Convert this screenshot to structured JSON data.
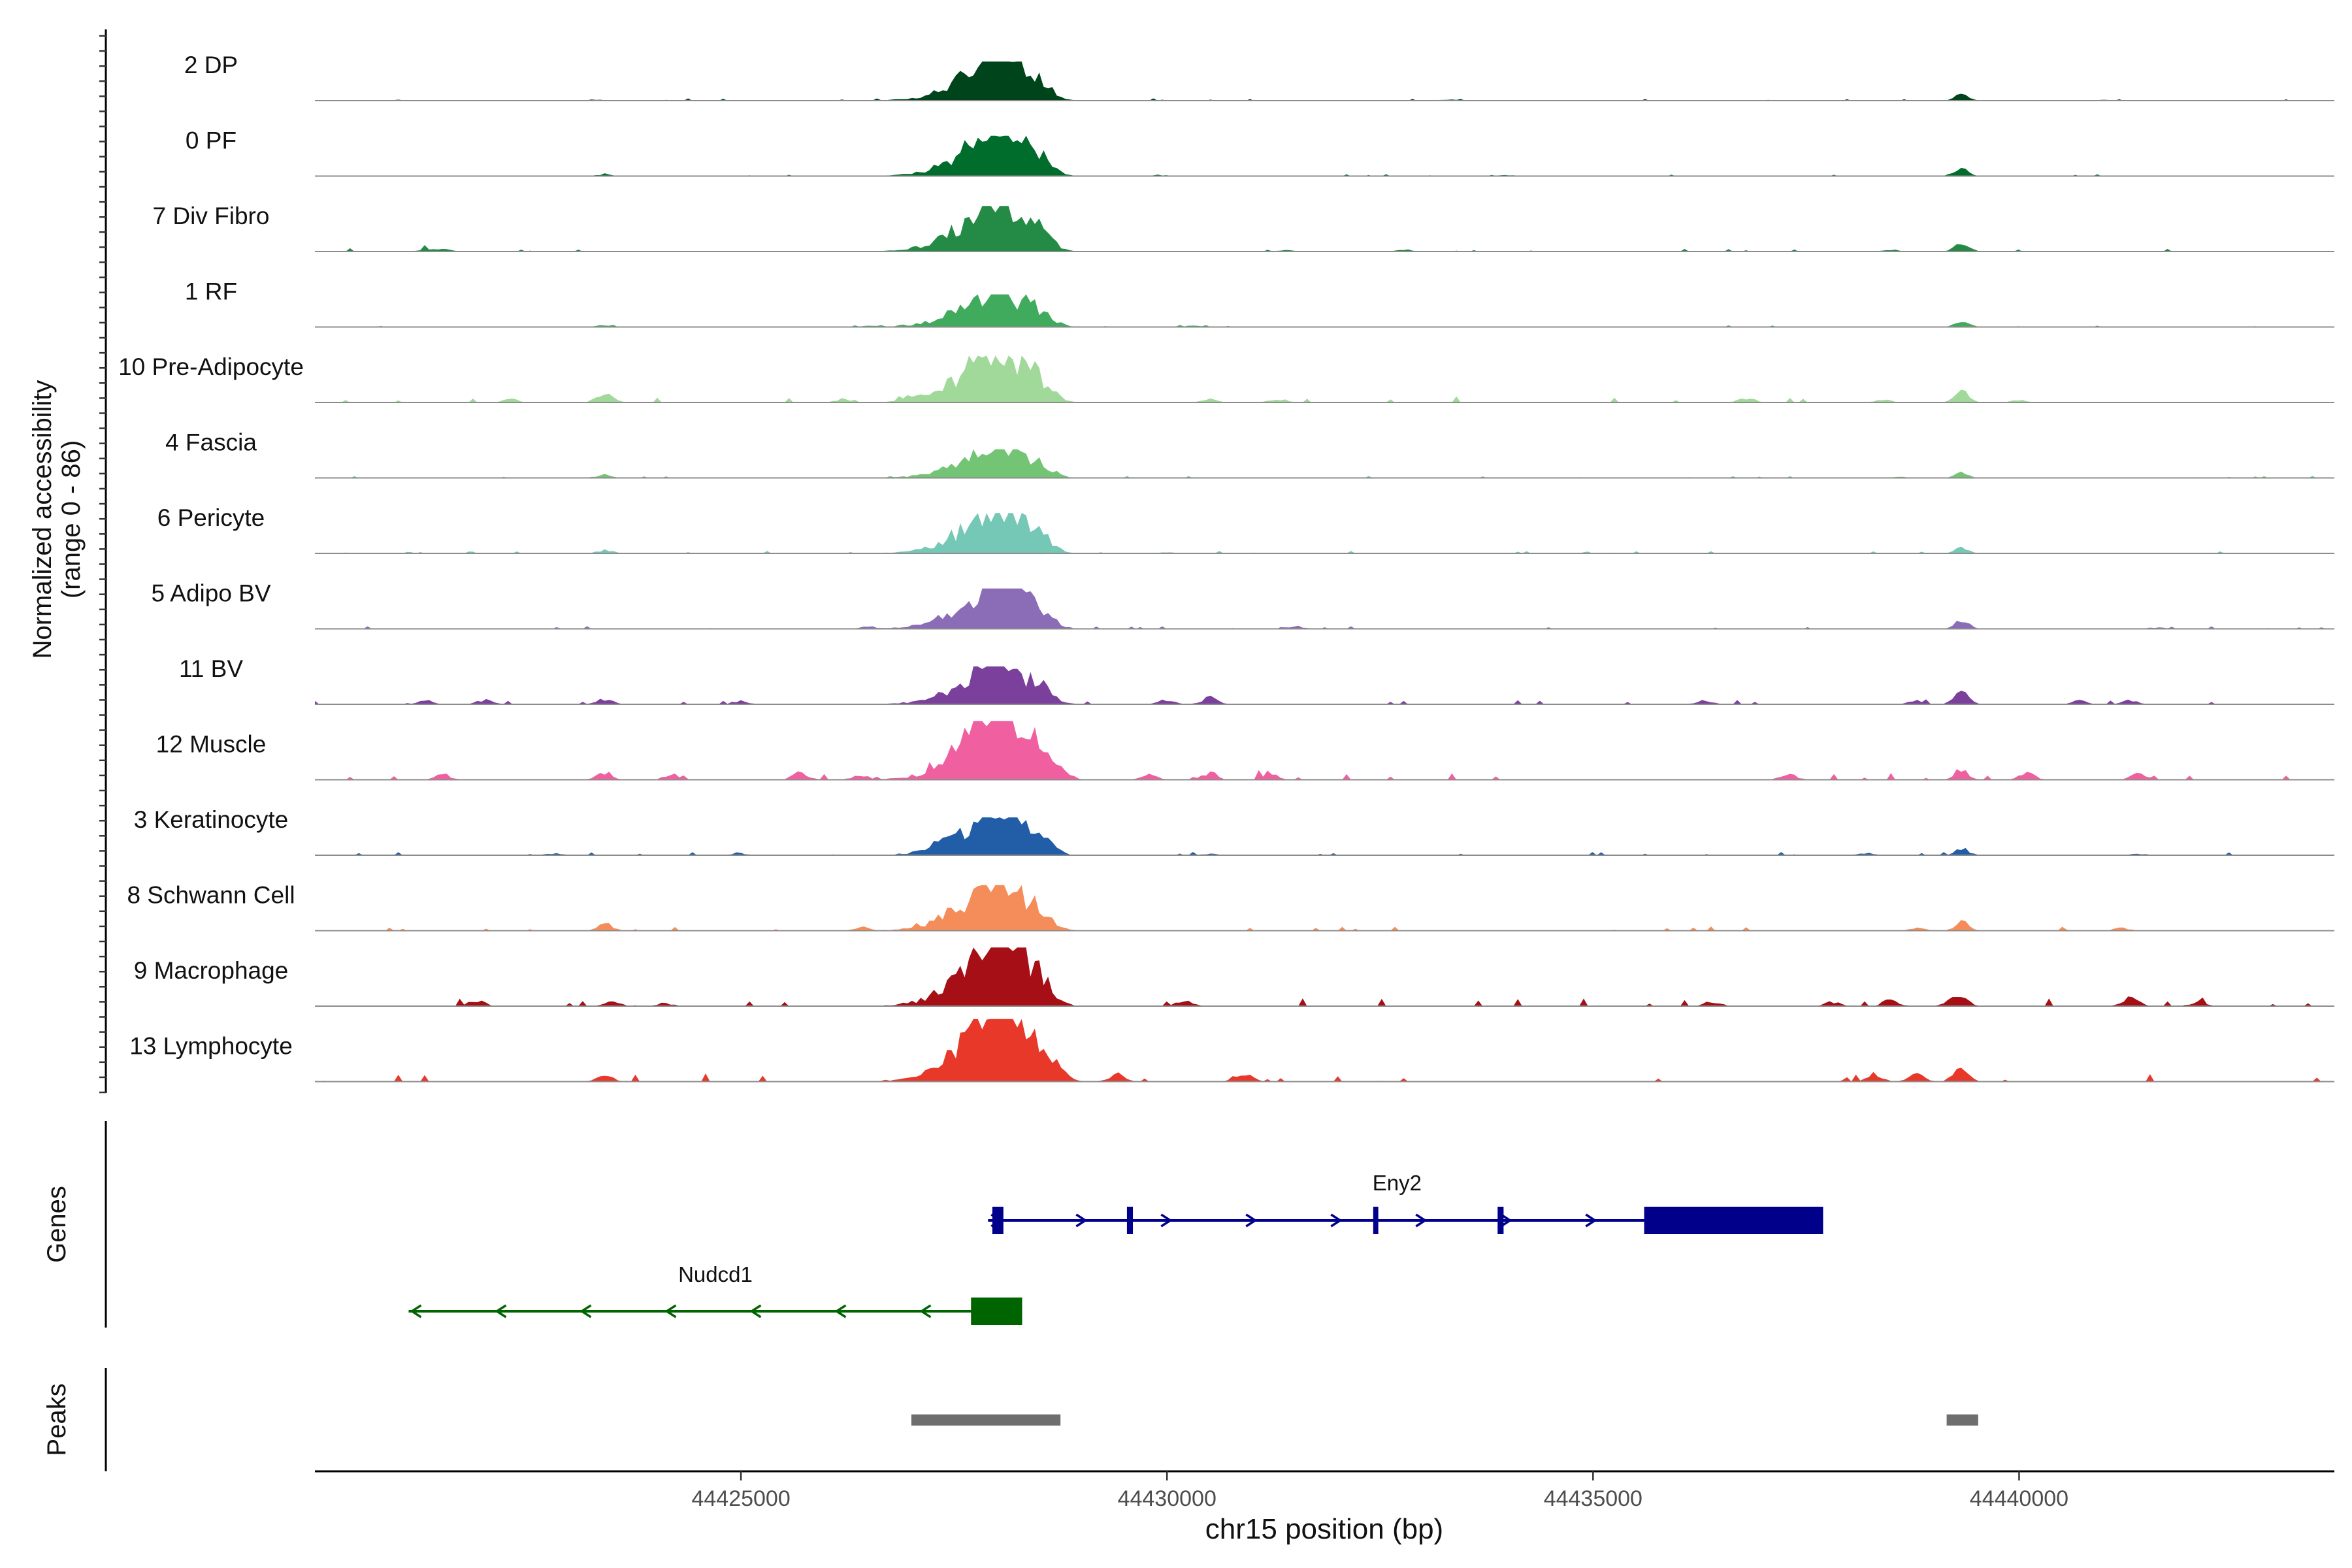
{
  "chart_data": {
    "type": "area",
    "title": "",
    "ylabel_line1": "Normalized accessibility",
    "ylabel_line2": "(range 0 - 86)",
    "y_range": [
      0,
      86
    ],
    "xlabel": "chr15 position (bp)",
    "chromosome": "chr15",
    "xlim": [
      44420000,
      44443700
    ],
    "x_ticks": [
      44425000,
      44430000,
      44435000,
      44440000
    ],
    "x_tick_labels": [
      "44425000",
      "44430000",
      "44435000",
      "44440000"
    ],
    "genes_track_label": "Genes",
    "peaks_track_label": "Peaks",
    "tracks": [
      {
        "name": "2 DP",
        "color": "#00441b",
        "max": 0.6,
        "hump": 1.0,
        "peak2": 0.2,
        "noise": 0.06,
        "bg": [
          [
            44421000,
            0.02
          ],
          [
            44423300,
            0.03
          ],
          [
            44433300,
            0.03
          ],
          [
            44441000,
            0.02
          ]
        ]
      },
      {
        "name": "0 PF",
        "color": "#006d2c",
        "max": 0.62,
        "hump": 1.0,
        "peak2": 0.18,
        "noise": 0.06,
        "bg": [
          [
            44423400,
            0.04
          ],
          [
            44429900,
            0.03
          ],
          [
            44434000,
            0.03
          ]
        ]
      },
      {
        "name": "7 Div Fibro",
        "color": "#238b45",
        "max": 0.7,
        "hump": 1.0,
        "peak2": 0.22,
        "noise": 0.08,
        "bg": [
          [
            44421300,
            0.05
          ],
          [
            44421500,
            0.05
          ],
          [
            44431400,
            0.04
          ],
          [
            44432800,
            0.04
          ],
          [
            44438500,
            0.04
          ]
        ]
      },
      {
        "name": "1 RF",
        "color": "#41ab5d",
        "max": 0.5,
        "hump": 1.0,
        "peak2": 0.22,
        "noise": 0.06,
        "bg": [
          [
            44423400,
            0.05
          ],
          [
            44426500,
            0.04
          ],
          [
            44430300,
            0.04
          ]
        ]
      },
      {
        "name": "10 Pre-Adipocyte",
        "color": "#a1d99b",
        "max": 0.72,
        "hump": 1.0,
        "peak2": 0.25,
        "noise": 0.14,
        "bg": [
          [
            44423400,
            0.22
          ],
          [
            44422300,
            0.07
          ],
          [
            44426200,
            0.06
          ],
          [
            44427000,
            0.08
          ],
          [
            44430500,
            0.07
          ],
          [
            44431300,
            0.08
          ],
          [
            44436800,
            0.1
          ],
          [
            44438400,
            0.06
          ],
          [
            44440000,
            0.05
          ]
        ]
      },
      {
        "name": "4 Fascia",
        "color": "#74c476",
        "max": 0.44,
        "hump": 1.0,
        "peak2": 0.18,
        "noise": 0.07,
        "bg": [
          [
            44423400,
            0.12
          ],
          [
            44438600,
            0.04
          ]
        ]
      },
      {
        "name": "6 Pericyte",
        "color": "#76c8b6",
        "max": 0.62,
        "hump": 1.0,
        "peak2": 0.14,
        "noise": 0.07,
        "bg": [
          [
            44423400,
            0.08
          ],
          [
            44430000,
            0.04
          ]
        ]
      },
      {
        "name": "5 Adipo BV",
        "color": "#8a6cb7",
        "max": 0.62,
        "hump": 1.0,
        "peak2": 0.22,
        "noise": 0.07,
        "bg": [
          [
            44431500,
            0.07
          ],
          [
            44441600,
            0.04
          ],
          [
            44426500,
            0.05
          ]
        ]
      },
      {
        "name": "11 BV",
        "color": "#7b3f9c",
        "max": 0.58,
        "hump": 1.0,
        "peak2": 0.45,
        "noise": 0.12,
        "bg": [
          [
            44421300,
            0.1
          ],
          [
            44422000,
            0.12
          ],
          [
            44423400,
            0.16
          ],
          [
            44425000,
            0.1
          ],
          [
            44430000,
            0.12
          ],
          [
            44430500,
            0.18
          ],
          [
            44436300,
            0.1
          ],
          [
            44438800,
            0.1
          ],
          [
            44440700,
            0.1
          ],
          [
            44441300,
            0.12
          ]
        ]
      },
      {
        "name": "12 Muscle",
        "color": "#f060a0",
        "max": 0.9,
        "hump": 1.0,
        "peak2": 0.16,
        "noise": 0.14,
        "bg": [
          [
            44421500,
            0.1
          ],
          [
            44423400,
            0.12
          ],
          [
            44424200,
            0.1
          ],
          [
            44425700,
            0.12
          ],
          [
            44426400,
            0.08
          ],
          [
            44428800,
            0.1
          ],
          [
            44429800,
            0.08
          ],
          [
            44430500,
            0.12
          ],
          [
            44431200,
            0.12
          ],
          [
            44437300,
            0.1
          ],
          [
            44440100,
            0.12
          ],
          [
            44441400,
            0.1
          ]
        ]
      },
      {
        "name": "3 Keratinocyte",
        "color": "#225ea8",
        "max": 0.58,
        "hump": 1.0,
        "peak2": 0.18,
        "noise": 0.09,
        "bg": [
          [
            44422800,
            0.05
          ],
          [
            44425000,
            0.05
          ],
          [
            44427300,
            0.12
          ],
          [
            44430500,
            0.04
          ],
          [
            44438200,
            0.06
          ],
          [
            44441400,
            0.04
          ]
        ]
      },
      {
        "name": "8 Schwann Cell",
        "color": "#f58d5a",
        "max": 0.7,
        "hump": 1.0,
        "peak2": 0.2,
        "noise": 0.1,
        "bg": [
          [
            44423400,
            0.16
          ],
          [
            44426400,
            0.08
          ],
          [
            44438800,
            0.07
          ],
          [
            44441200,
            0.06
          ]
        ]
      },
      {
        "name": "9 Macrophage",
        "color": "#a50f15",
        "max": 0.9,
        "hump": 1.0,
        "peak2": 0.14,
        "noise": 0.14,
        "bg": [
          [
            44421900,
            0.1
          ],
          [
            44423500,
            0.1
          ],
          [
            44424100,
            0.06
          ],
          [
            44430200,
            0.1
          ],
          [
            44436400,
            0.08
          ],
          [
            44437800,
            0.08
          ],
          [
            44438500,
            0.12
          ],
          [
            44439200,
            0.1
          ],
          [
            44441300,
            0.16
          ],
          [
            44442100,
            0.08
          ]
        ]
      },
      {
        "name": "13 Lymphocyte",
        "color": "#e8382a",
        "max": 0.96,
        "hump": 1.0,
        "peak2": 0.16,
        "noise": 0.14,
        "bg": [
          [
            44423400,
            0.14
          ],
          [
            44428800,
            0.1
          ],
          [
            44429400,
            0.12
          ],
          [
            44430900,
            0.16
          ],
          [
            44438300,
            0.12
          ],
          [
            44438800,
            0.12
          ],
          [
            44439300,
            0.1
          ]
        ]
      }
    ],
    "genes": [
      {
        "name": "Eny2",
        "strand": "+",
        "color": "#00008b",
        "start": 44427900,
        "end": 44437700,
        "exons": [
          [
            44427950,
            44428080
          ],
          [
            44429530,
            44429600
          ],
          [
            44432420,
            44432480
          ],
          [
            44433880,
            44433950
          ],
          [
            44435600,
            44437700
          ]
        ]
      },
      {
        "name": "Nudcd1",
        "strand": "-",
        "color": "#006400",
        "start": 44421100,
        "end": 44428300,
        "exons": [
          [
            44427700,
            44428300
          ]
        ]
      }
    ],
    "peaks": [
      [
        44427000,
        44428750
      ],
      [
        44439150,
        44439520
      ]
    ],
    "peaks_color": "#6e6e6e"
  }
}
